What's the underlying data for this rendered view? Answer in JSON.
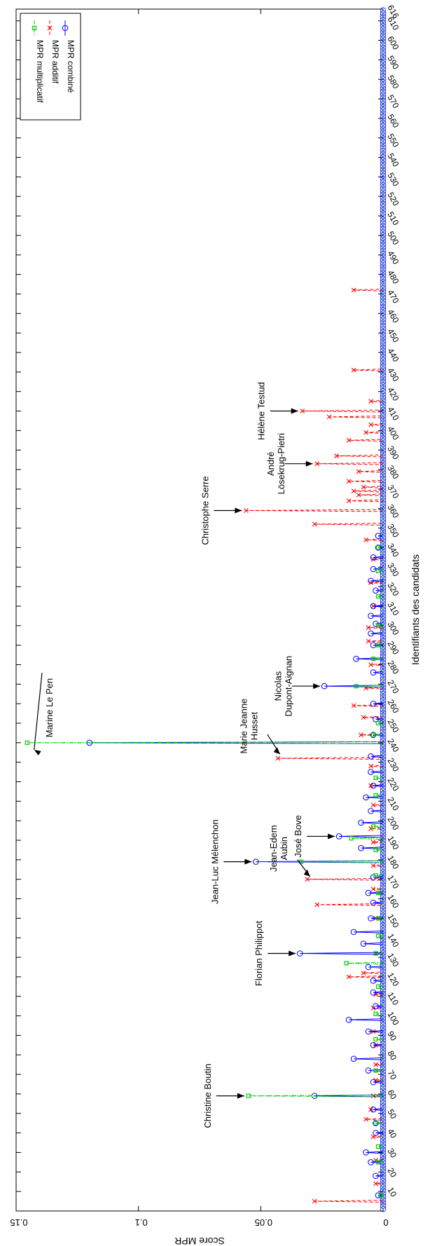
{
  "chart_data": {
    "type": "line",
    "orientation": "rotated-90-clockwise",
    "xlabel": "Identifiants des candidats",
    "ylabel": "Score MPR",
    "xlim": [
      0,
      616
    ],
    "ylim": [
      0,
      0.15
    ],
    "x_ticks": [
      10,
      20,
      30,
      40,
      50,
      60,
      70,
      80,
      90,
      100,
      110,
      120,
      130,
      140,
      150,
      160,
      170,
      180,
      190,
      200,
      210,
      220,
      230,
      240,
      250,
      260,
      270,
      280,
      290,
      300,
      310,
      320,
      330,
      340,
      350,
      360,
      370,
      380,
      390,
      400,
      410,
      420,
      430,
      440,
      450,
      460,
      470,
      480,
      490,
      500,
      510,
      520,
      530,
      540,
      550,
      560,
      570,
      580,
      590,
      600,
      610,
      616
    ],
    "y_ticks": [
      {
        "value": 0,
        "label": "0"
      },
      {
        "value": 0.05,
        "label": "0.05"
      },
      {
        "value": 0.1,
        "label": "0.1"
      },
      {
        "value": 0.15,
        "label": "0.15"
      }
    ],
    "grid": false,
    "legend_position": "top-right",
    "series": [
      {
        "name": "MPR multiplicatif",
        "color": "#00cc00",
        "line_style": "dash-dot",
        "marker": "square",
        "points": [
          [
            8,
            0.001
          ],
          [
            25,
            0.002
          ],
          [
            33,
            0.002
          ],
          [
            45,
            0.003
          ],
          [
            59,
            0.055
          ],
          [
            72,
            0.003
          ],
          [
            88,
            0.003
          ],
          [
            101,
            0.003
          ],
          [
            115,
            0.002
          ],
          [
            127,
            0.015
          ],
          [
            132,
            0.003
          ],
          [
            141,
            0.002
          ],
          [
            150,
            0.002
          ],
          [
            163,
            0.002
          ],
          [
            172,
            0.003
          ],
          [
            179,
            0.0335
          ],
          [
            185,
            0.003
          ],
          [
            191,
            0.013
          ],
          [
            197,
            0.004
          ],
          [
            213,
            0.003
          ],
          [
            222,
            0.003
          ],
          [
            240,
            0.1455
          ],
          [
            244,
            0.004
          ],
          [
            250,
            0.002
          ],
          [
            269,
            0.011
          ],
          [
            283,
            0.004
          ],
          [
            290,
            0.002
          ],
          [
            300,
            0.002
          ],
          [
            315,
            0.002
          ],
          [
            328,
            0.002
          ],
          [
            340,
            0.002
          ]
        ]
      },
      {
        "name": "MPR additif",
        "color": "#ff0000",
        "line_style": "dashed",
        "marker": "x",
        "points": [
          [
            5,
            0.028
          ],
          [
            14,
            0.003
          ],
          [
            26,
            0.003
          ],
          [
            38,
            0.004
          ],
          [
            47,
            0.007
          ],
          [
            52,
            0.005
          ],
          [
            59,
            0.004
          ],
          [
            67,
            0.003
          ],
          [
            75,
            0.003
          ],
          [
            85,
            0.003
          ],
          [
            92,
            0.004
          ],
          [
            104,
            0.004
          ],
          [
            111,
            0.003
          ],
          [
            120,
            0.014
          ],
          [
            122,
            0.008
          ],
          [
            132,
            0.003
          ],
          [
            150,
            0.003
          ],
          [
            157,
            0.027
          ],
          [
            165,
            0.004
          ],
          [
            170,
            0.031
          ],
          [
            177,
            0.004
          ],
          [
            189,
            0.004
          ],
          [
            196,
            0.005
          ],
          [
            208,
            0.004
          ],
          [
            218,
            0.005
          ],
          [
            228,
            0.005
          ],
          [
            232,
            0.043
          ],
          [
            244,
            0.009
          ],
          [
            253,
            0.008
          ],
          [
            259,
            0.012
          ],
          [
            268,
            0.007
          ],
          [
            280,
            0.005
          ],
          [
            292,
            0.006
          ],
          [
            299,
            0.006
          ],
          [
            310,
            0.004
          ],
          [
            322,
            0.005
          ],
          [
            334,
            0.004
          ],
          [
            344,
            0.007
          ],
          [
            352,
            0.028
          ],
          [
            359,
            0.056
          ],
          [
            364,
            0.014
          ],
          [
            367,
            0.01
          ],
          [
            369,
            0.012
          ],
          [
            371,
            0.008
          ],
          [
            374,
            0.014
          ],
          [
            379,
            0.01
          ],
          [
            383,
            0.027
          ],
          [
            387,
            0.019
          ],
          [
            395,
            0.014
          ],
          [
            399,
            0.007
          ],
          [
            403,
            0.005
          ],
          [
            407,
            0.022
          ],
          [
            410,
            0.033
          ],
          [
            415,
            0.005
          ],
          [
            431,
            0.012
          ],
          [
            472,
            0.012
          ]
        ]
      },
      {
        "name": "MPR combiné",
        "color": "#0000ff",
        "line_style": "solid",
        "marker": "circle",
        "points": [
          [
            8,
            0.002
          ],
          [
            18,
            0.003
          ],
          [
            25,
            0.005
          ],
          [
            30,
            0.007
          ],
          [
            40,
            0.003
          ],
          [
            45,
            0.003
          ],
          [
            52,
            0.004
          ],
          [
            59,
            0.028
          ],
          [
            66,
            0.004
          ],
          [
            72,
            0.006
          ],
          [
            78,
            0.012
          ],
          [
            85,
            0.004
          ],
          [
            92,
            0.006
          ],
          [
            98,
            0.014
          ],
          [
            105,
            0.003
          ],
          [
            112,
            0.004
          ],
          [
            118,
            0.004
          ],
          [
            125,
            0.006
          ],
          [
            132,
            0.034
          ],
          [
            137,
            0.008
          ],
          [
            143,
            0.012
          ],
          [
            150,
            0.005
          ],
          [
            158,
            0.004
          ],
          [
            163,
            0.006
          ],
          [
            171,
            0.004
          ],
          [
            179,
            0.052
          ],
          [
            186,
            0.009
          ],
          [
            192,
            0.018
          ],
          [
            199,
            0.009
          ],
          [
            205,
            0.005
          ],
          [
            212,
            0.007
          ],
          [
            218,
            0.004
          ],
          [
            225,
            0.005
          ],
          [
            233,
            0.005
          ],
          [
            240,
            0.12
          ],
          [
            244,
            0.004
          ],
          [
            252,
            0.003
          ],
          [
            260,
            0.004
          ],
          [
            269,
            0.024
          ],
          [
            276,
            0.004
          ],
          [
            283,
            0.011
          ],
          [
            290,
            0.004
          ],
          [
            296,
            0.005
          ],
          [
            301,
            0.003
          ],
          [
            305,
            0.005
          ],
          [
            310,
            0.004
          ],
          [
            318,
            0.003
          ],
          [
            323,
            0.005
          ],
          [
            329,
            0.004
          ],
          [
            335,
            0.004
          ],
          [
            340,
            0.002
          ],
          [
            346,
            0.002
          ]
        ]
      }
    ],
    "annotations": [
      {
        "lines": [
          "Christine Boutin"
        ],
        "x": 59,
        "y": 0.055
      },
      {
        "lines": [
          "Florian Philippot"
        ],
        "x": 132,
        "y": 0.034
      },
      {
        "lines": [
          "Jean-Edem",
          "Aubin"
        ],
        "x": 170,
        "y": 0.031
      },
      {
        "lines": [
          "Jean-Luc Mélenchon"
        ],
        "x": 179,
        "y": 0.052
      },
      {
        "lines": [
          "José Bove"
        ],
        "x": 192,
        "y": 0.018
      },
      {
        "lines": [
          "Marie Jeanne",
          "Husset"
        ],
        "x": 232,
        "y": 0.043
      },
      {
        "lines": [
          "Marine Le Pen"
        ],
        "x": 240,
        "y": 0.1455
      },
      {
        "lines": [
          "Nicolas",
          "Dupont-Aignan"
        ],
        "x": 269,
        "y": 0.024
      },
      {
        "lines": [
          "Christophe Serre"
        ],
        "x": 359,
        "y": 0.056
      },
      {
        "lines": [
          "André",
          "Lösekrug-Pietri"
        ],
        "x": 383,
        "y": 0.027
      },
      {
        "lines": [
          "Hélène Testud"
        ],
        "x": 410,
        "y": 0.033
      }
    ]
  }
}
